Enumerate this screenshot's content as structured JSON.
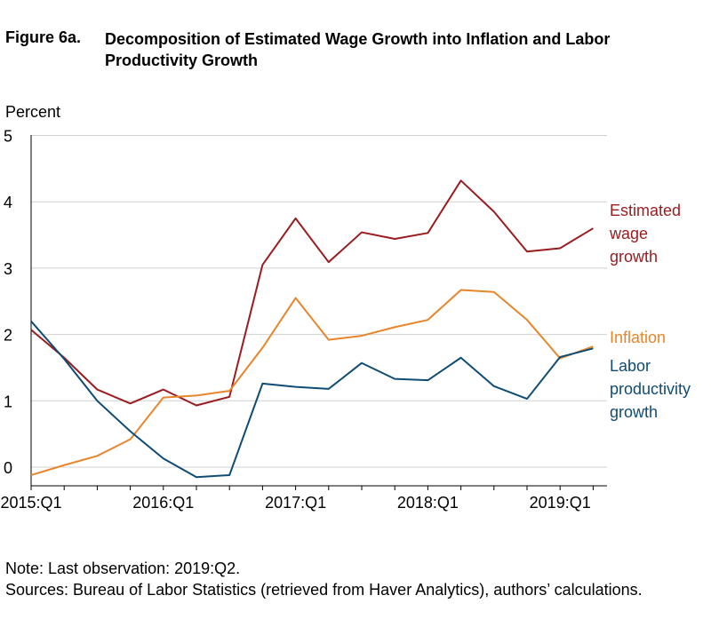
{
  "figure": {
    "label": "Figure 6a.",
    "title": "Decomposition of Estimated Wage Growth into Inflation and Labor Productivity Growth"
  },
  "notes": {
    "note": "Note: Last observation: 2019:Q2.",
    "sources": "Sources: Bureau of Labor Statistics (retrieved from Haver Analytics), authors’ calculations."
  },
  "colors": {
    "wage": "#9b1b1f",
    "inflation": "#e8852a",
    "productivity": "#0f4c75",
    "grid": "#d0d0d0",
    "axis": "#000000"
  },
  "chart_data": {
    "type": "line",
    "title": "Decomposition of Estimated Wage Growth into Inflation and Labor Productivity Growth",
    "ylabel": "Percent",
    "ylim": [
      -0.3,
      5
    ],
    "yticks": [
      0,
      1,
      2,
      3,
      4,
      5
    ],
    "grid": true,
    "legend": "direct labels at right",
    "x": [
      "2015:Q1",
      "2015:Q2",
      "2015:Q3",
      "2015:Q4",
      "2016:Q1",
      "2016:Q2",
      "2016:Q3",
      "2016:Q4",
      "2017:Q1",
      "2017:Q2",
      "2017:Q3",
      "2017:Q4",
      "2018:Q1",
      "2018:Q2",
      "2018:Q3",
      "2018:Q4",
      "2019:Q1",
      "2019:Q2"
    ],
    "xtick_labels": [
      "2015:Q1",
      "2016:Q1",
      "2017:Q1",
      "2018:Q1",
      "2019:Q1"
    ],
    "series": [
      {
        "name": "Estimated wage growth",
        "label_lines": [
          "Estimated",
          "wage",
          "growth"
        ],
        "color_key": "wage",
        "values": [
          2.07,
          1.65,
          1.17,
          0.96,
          1.17,
          0.93,
          1.06,
          3.05,
          3.75,
          3.09,
          3.54,
          3.44,
          3.53,
          4.32,
          3.85,
          3.25,
          3.3,
          3.6
        ]
      },
      {
        "name": "Inflation",
        "label_lines": [
          "Inflation"
        ],
        "color_key": "inflation",
        "values": [
          -0.12,
          0.03,
          0.17,
          0.42,
          1.05,
          1.08,
          1.15,
          1.8,
          2.55,
          1.92,
          1.98,
          2.11,
          2.22,
          2.67,
          2.64,
          2.22,
          1.64,
          1.82
        ]
      },
      {
        "name": "Labor productivity growth",
        "label_lines": [
          "Labor",
          "productivity",
          "growth"
        ],
        "color_key": "productivity",
        "values": [
          2.2,
          1.63,
          1.0,
          0.54,
          0.13,
          -0.15,
          -0.12,
          1.26,
          1.21,
          1.18,
          1.57,
          1.33,
          1.31,
          1.65,
          1.22,
          1.03,
          1.66,
          1.79
        ]
      }
    ]
  }
}
